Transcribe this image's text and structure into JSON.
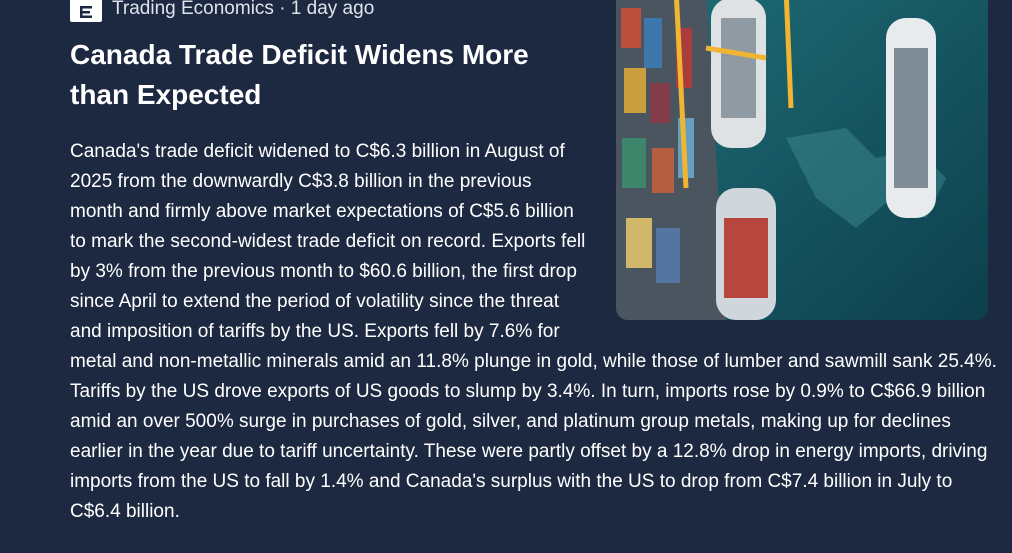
{
  "article": {
    "source_line": "Trading Economics · 1 day ago",
    "title": "Canada Trade Deficit Widens More than Expected",
    "body": "Canada's trade deficit widened to C$6.3 billion in August of 2025 from the downwardly C$3.8 billion in the previous month and firmly above market expectations of C$5.6 billion to mark the second-widest trade deficit on record. Exports fell by 3% from the previous month to $60.6 billion, the first drop since April to extend the period of volatility since the threat and imposition of tariffs by the US. Exports fell by 7.6% for metal and non-metallic minerals amid an 11.8% plunge in gold, while those of lumber and sawmill sank 25.4%. Tariffs by the US drove exports of US goods to slump by 3.4%. In turn, imports rose by 0.9% to C$66.9 billion amid an over 500% surge in purchases of gold, silver, and platinum group metals, making up for declines earlier in the year due to tariff uncertainty. These were partly offset by a 12.8% drop in energy imports, driving imports from the US to fall by 1.4% and Canada's surplus with the US to drop from C$7.4 billion in July to C$6.4 billion."
  }
}
